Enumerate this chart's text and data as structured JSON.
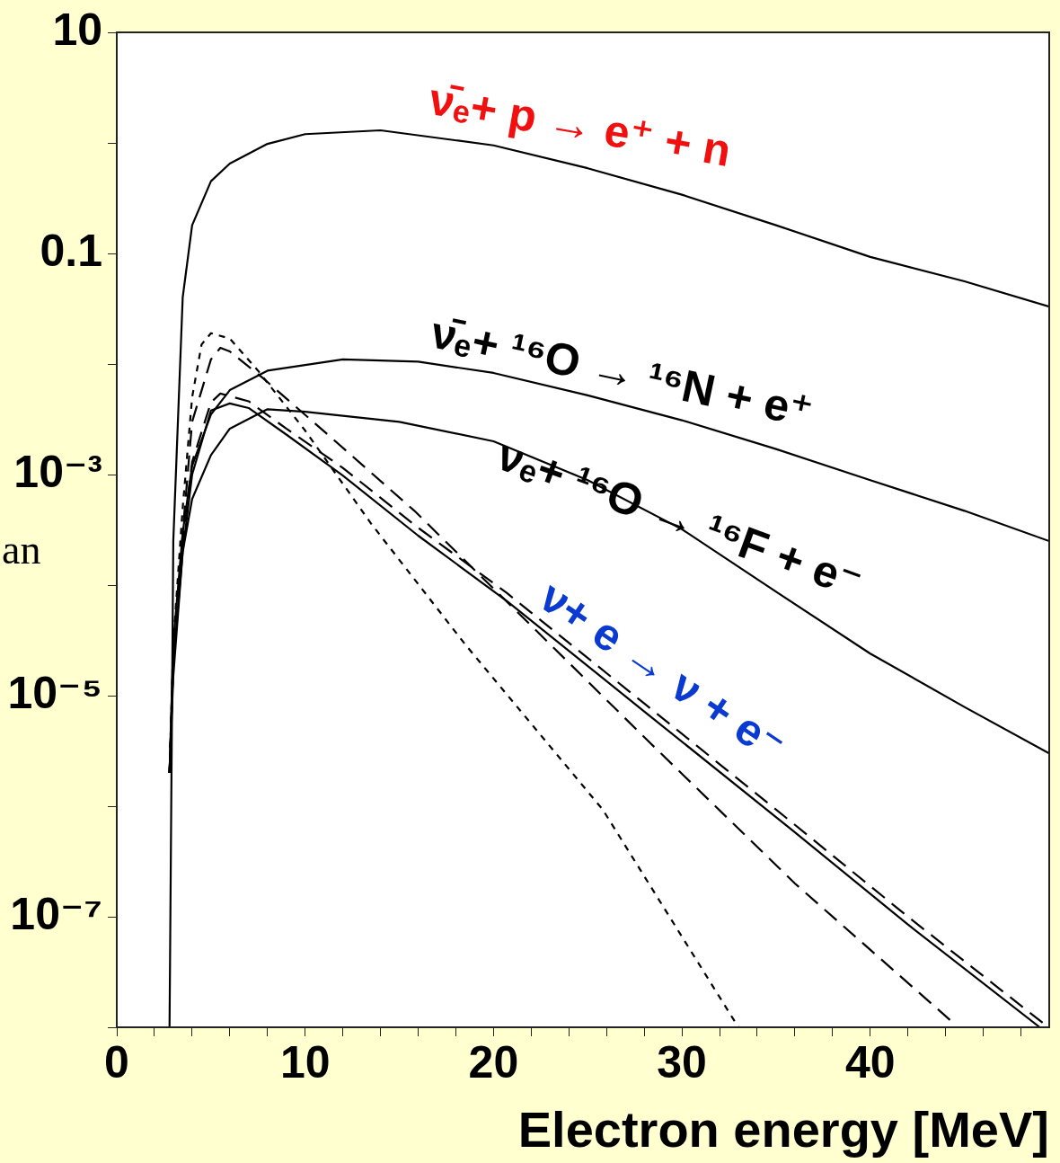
{
  "chart_data": {
    "type": "line",
    "xlabel": "Electron energy [MeV]",
    "log": "y",
    "grid": false,
    "legend": false,
    "marker": "none",
    "xlim": [
      0,
      49.5
    ],
    "xticks": [
      0,
      {
        "value": 2,
        "label": null
      },
      {
        "value": 4,
        "label": null
      },
      {
        "value": 6,
        "label": null
      },
      {
        "value": 8,
        "label": null
      },
      10,
      {
        "value": 12,
        "label": null
      },
      {
        "value": 14,
        "label": null
      },
      {
        "value": 16,
        "label": null
      },
      {
        "value": 18,
        "label": null
      },
      20,
      {
        "value": 22,
        "label": null
      },
      {
        "value": 24,
        "label": null
      },
      {
        "value": 26,
        "label": null
      },
      {
        "value": 28,
        "label": null
      },
      30,
      {
        "value": 32,
        "label": null
      },
      {
        "value": 34,
        "label": null
      },
      {
        "value": 36,
        "label": null
      },
      {
        "value": 38,
        "label": null
      },
      40,
      {
        "value": 42,
        "label": null
      },
      {
        "value": 44,
        "label": null
      },
      {
        "value": 46,
        "label": null
      },
      {
        "value": 48,
        "label": null
      }
    ],
    "ylim": [
      1e-08,
      10
    ],
    "yticks": [
      10,
      {
        "value": 1,
        "label": null
      },
      0.1,
      {
        "value": 0.01,
        "label": null
      },
      {
        "value": 0.001,
        "label": "10⁻³"
      },
      {
        "value": 0.0001,
        "label": null
      },
      {
        "value": 1e-05,
        "label": "10⁻⁵"
      },
      {
        "value": 1e-06,
        "label": null
      },
      {
        "value": 1e-07,
        "label": "10⁻⁷"
      },
      {
        "value": 1e-08,
        "label": null
      }
    ],
    "series": [
      {
        "color": "#000000",
        "line_style": "solid",
        "x": [
          2.8,
          3,
          3.5,
          4,
          5,
          6,
          8,
          10,
          14,
          20,
          25,
          30,
          35,
          40,
          45,
          49.5
        ],
        "values": [
          1e-08,
          0.00025,
          0.04,
          0.18,
          0.45,
          0.65,
          0.98,
          1.2,
          1.3,
          0.95,
          0.59,
          0.34,
          0.18,
          0.093,
          0.056,
          0.033
        ]
      },
      {
        "color": "#000000",
        "line_style": "solid",
        "x": [
          2.8,
          3,
          3.5,
          4,
          5,
          6,
          8,
          12,
          16,
          20,
          25,
          30,
          35,
          40,
          45,
          49.5
        ],
        "values": [
          2e-06,
          3e-05,
          0.0003,
          0.0012,
          0.0035,
          0.0058,
          0.0087,
          0.011,
          0.0105,
          0.0083,
          0.0052,
          0.0031,
          0.0017,
          0.00089,
          0.00047,
          0.00025
        ]
      },
      {
        "color": "#000000",
        "line_style": "solid",
        "x": [
          2.8,
          3,
          3.5,
          4,
          5,
          6,
          8,
          10,
          15,
          20,
          25,
          30,
          35,
          40,
          45,
          49.5
        ],
        "values": [
          2e-06,
          2e-05,
          0.0002,
          0.0006,
          0.0015,
          0.0026,
          0.0039,
          0.0037,
          0.003,
          0.002,
          0.00089,
          0.00032,
          8.7e-05,
          2.4e-05,
          7.9e-06,
          3e-06
        ]
      },
      {
        "color": "#000000",
        "line_style": "dotted",
        "x": [
          2.8,
          3,
          3.5,
          4,
          4.5,
          5,
          6,
          7.5,
          10,
          13.5,
          18.5,
          25.8,
          33
        ],
        "values": [
          2e-06,
          3e-05,
          0.0005,
          0.005,
          0.015,
          0.019,
          0.017,
          0.0087,
          0.0025,
          0.00036,
          2.9e-05,
          9.3e-07,
          1e-08
        ]
      },
      {
        "color": "#000000",
        "line_style": "dashed",
        "x": [
          2.8,
          3,
          3.5,
          4,
          5,
          5.5,
          6,
          7.7,
          11.2,
          15.8,
          22,
          28.2,
          36,
          44.4
        ],
        "values": [
          2e-06,
          2e-05,
          0.0003,
          0.003,
          0.011,
          0.014,
          0.013,
          0.0076,
          0.0023,
          0.00047,
          4.3e-05,
          3.9e-06,
          2e-07,
          1.1e-08
        ]
      },
      {
        "color": "#000000",
        "line_style": "dashed",
        "x": [
          2.8,
          3,
          3.5,
          4,
          5,
          5.5,
          7,
          9,
          12,
          16,
          20.7,
          28,
          35.9,
          42,
          49.3
        ],
        "values": [
          2e-06,
          2e-05,
          0.00025,
          0.0013,
          0.0045,
          0.0054,
          0.0046,
          0.0026,
          0.00115,
          0.00033,
          8.5e-05,
          8.5e-06,
          7e-07,
          1e-07,
          1.05e-08
        ]
      },
      {
        "color": "#000000",
        "line_style": "solid",
        "x": [
          2.8,
          3,
          3.5,
          4,
          5,
          6,
          7,
          9,
          12,
          16,
          20.7,
          28,
          35.9,
          42,
          49
        ],
        "values": [
          2e-06,
          1.5e-05,
          0.0002,
          0.001,
          0.0038,
          0.0044,
          0.004,
          0.0023,
          0.00098,
          0.00028,
          7.2e-05,
          7.2e-06,
          6e-07,
          8.5e-08,
          1e-08
        ]
      }
    ],
    "annotations": [
      "ν̄ₑ+ p → e⁺ + n",
      "ν̄ₑ+ ¹⁶O → ¹⁶N + e⁺",
      "νₑ+ ¹⁶O → ¹⁶F + e⁻",
      "ν+ e → ν + e⁻",
      "an"
    ]
  }
}
